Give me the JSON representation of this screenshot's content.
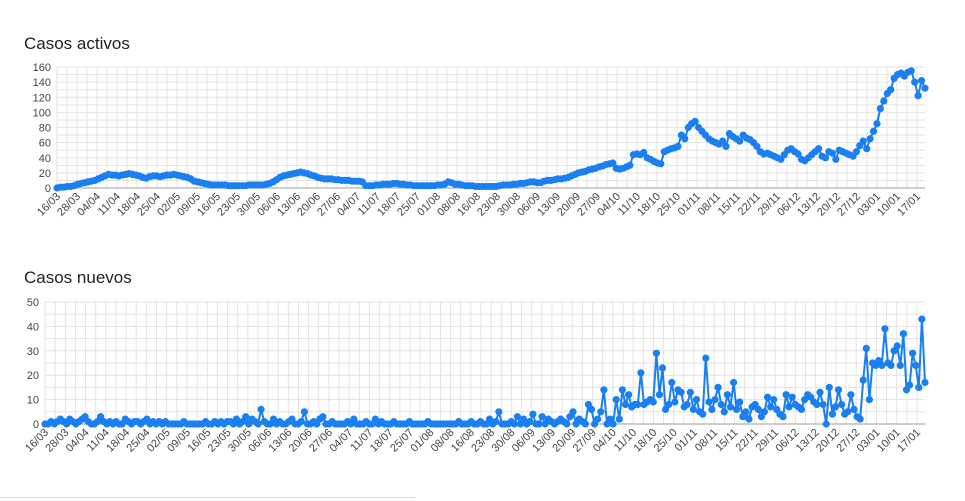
{
  "colors": {
    "series": "#1a7ff0",
    "grid": "#e3e3e3"
  },
  "chart_data": [
    {
      "type": "line",
      "title": "Casos activos",
      "ylim": [
        0,
        160
      ],
      "yticks": [
        0,
        20,
        40,
        60,
        80,
        100,
        120,
        140,
        160
      ],
      "start_date": "16/03",
      "x_tick_labels": [
        "16/03",
        "28/03",
        "04/04",
        "11/04",
        "18/04",
        "25/04",
        "02/05",
        "09/05",
        "16/05",
        "23/05",
        "30/05",
        "06/06",
        "13/06",
        "20/06",
        "27/06",
        "04/07",
        "11/07",
        "18/07",
        "25/07",
        "01/08",
        "08/08",
        "16/08",
        "23/08",
        "30/08",
        "06/09",
        "13/09",
        "20/09",
        "27/09",
        "04/10",
        "11/10",
        "18/10",
        "25/10",
        "01/11",
        "08/11",
        "15/11",
        "22/11",
        "29/11",
        "06/12",
        "13/12",
        "20/12",
        "27/12",
        "03/01",
        "10/01",
        "17/01"
      ],
      "grid": true,
      "legend": "none",
      "values": [
        0,
        1,
        1,
        2,
        2,
        3,
        5,
        6,
        7,
        8,
        9,
        10,
        12,
        14,
        16,
        18,
        17,
        17,
        16,
        17,
        18,
        19,
        18,
        17,
        16,
        14,
        13,
        15,
        16,
        16,
        15,
        16,
        17,
        17,
        18,
        17,
        16,
        15,
        14,
        12,
        9,
        8,
        7,
        6,
        5,
        4,
        4,
        4,
        4,
        4,
        3,
        3,
        3,
        3,
        3,
        3,
        4,
        4,
        4,
        4,
        4,
        5,
        6,
        8,
        11,
        14,
        16,
        17,
        18,
        19,
        20,
        21,
        20,
        19,
        17,
        16,
        14,
        13,
        12,
        12,
        12,
        11,
        11,
        10,
        10,
        10,
        9,
        9,
        9,
        8,
        3,
        3,
        3,
        4,
        4,
        5,
        5,
        5,
        6,
        6,
        5,
        5,
        4,
        4,
        3,
        3,
        3,
        3,
        3,
        3,
        3,
        4,
        4,
        5,
        8,
        7,
        5,
        5,
        4,
        3,
        3,
        3,
        2,
        2,
        2,
        2,
        2,
        2,
        2,
        3,
        4,
        4,
        4,
        5,
        5,
        6,
        6,
        7,
        8,
        8,
        7,
        7,
        9,
        10,
        10,
        11,
        12,
        12,
        13,
        14,
        16,
        18,
        20,
        21,
        22,
        24,
        25,
        26,
        28,
        29,
        31,
        32,
        33,
        26,
        25,
        26,
        28,
        30,
        44,
        45,
        44,
        47,
        40,
        38,
        35,
        33,
        32,
        48,
        50,
        52,
        53,
        55,
        70,
        65,
        80,
        85,
        88,
        80,
        75,
        70,
        65,
        62,
        60,
        58,
        62,
        55,
        72,
        68,
        65,
        62,
        70,
        66,
        64,
        60,
        55,
        48,
        45,
        46,
        44,
        42,
        40,
        38,
        44,
        50,
        52,
        48,
        45,
        38,
        36,
        40,
        44,
        48,
        52,
        42,
        40,
        48,
        46,
        38,
        50,
        48,
        46,
        44,
        42,
        48,
        56,
        62,
        52,
        65,
        75,
        85,
        105,
        115,
        125,
        130,
        145,
        150,
        152,
        148,
        153,
        155,
        140,
        122,
        142,
        132
      ]
    },
    {
      "type": "line",
      "title": "Casos nuevos",
      "ylim": [
        0,
        50
      ],
      "yticks": [
        0,
        10,
        20,
        30,
        40,
        50
      ],
      "start_date": "16/03",
      "x_tick_labels": [
        "16/03",
        "28/03",
        "04/04",
        "11/04",
        "18/04",
        "25/04",
        "02/05",
        "09/05",
        "16/05",
        "23/05",
        "30/05",
        "06/06",
        "13/06",
        "20/06",
        "27/06",
        "04/07",
        "11/07",
        "18/07",
        "25/07",
        "01/08",
        "08/08",
        "16/08",
        "23/08",
        "30/08",
        "06/09",
        "13/09",
        "20/09",
        "27/09",
        "04/10",
        "11/10",
        "18/10",
        "25/10",
        "01/11",
        "08/11",
        "15/11",
        "22/11",
        "29/11",
        "06/12",
        "13/12",
        "20/12",
        "27/12",
        "03/01",
        "10/01",
        "17/01"
      ],
      "grid": true,
      "legend": "none",
      "values": [
        0,
        0,
        1,
        0,
        1,
        2,
        1,
        0,
        2,
        1,
        0,
        1,
        2,
        3,
        1,
        0,
        0,
        1,
        3,
        1,
        0,
        1,
        0,
        1,
        0,
        0,
        2,
        1,
        0,
        1,
        1,
        0,
        1,
        2,
        0,
        1,
        0,
        1,
        0,
        1,
        0,
        0,
        0,
        0,
        0,
        1,
        0,
        0,
        0,
        0,
        0,
        0,
        1,
        0,
        0,
        1,
        0,
        1,
        0,
        1,
        1,
        0,
        2,
        0,
        1,
        3,
        0,
        2,
        1,
        0,
        6,
        1,
        0,
        0,
        2,
        0,
        1,
        0,
        0,
        1,
        2,
        0,
        0,
        1,
        5,
        0,
        0,
        1,
        0,
        2,
        3,
        0,
        0,
        1,
        0,
        0,
        0,
        0,
        1,
        0,
        2,
        0,
        0,
        0,
        1,
        0,
        0,
        2,
        0,
        1,
        0,
        0,
        0,
        1,
        0,
        0,
        0,
        0,
        1,
        0,
        0,
        0,
        0,
        0,
        1,
        0,
        0,
        0,
        0,
        0,
        0,
        0,
        0,
        0,
        1,
        0,
        0,
        0,
        1,
        0,
        0,
        1,
        0,
        0,
        2,
        0,
        1,
        5,
        0,
        0,
        0,
        1,
        0,
        3,
        0,
        2,
        0,
        1,
        4,
        0,
        0,
        3,
        0,
        2,
        1,
        0,
        1,
        2,
        1,
        0,
        3,
        5,
        0,
        2,
        1,
        0,
        8,
        6,
        0,
        2,
        5,
        14,
        0,
        2,
        0,
        10,
        2,
        14,
        8,
        12,
        7,
        8,
        8,
        21,
        8,
        9,
        10,
        9,
        29,
        12,
        23,
        6,
        8,
        17,
        9,
        14,
        13,
        7,
        8,
        13,
        6,
        10,
        5,
        4,
        27,
        9,
        6,
        10,
        15,
        8,
        5,
        12,
        7,
        17,
        6,
        9,
        3,
        5,
        2,
        7,
        8,
        6,
        3,
        5,
        11,
        7,
        10,
        6,
        4,
        3,
        12,
        7,
        11,
        8,
        7,
        6,
        10,
        12,
        11,
        9,
        8,
        13,
        8,
        0,
        15,
        4,
        7,
        14,
        8,
        4,
        5,
        12,
        6,
        3,
        2,
        18,
        31,
        10,
        25,
        24,
        26,
        24,
        39,
        25,
        24,
        30,
        32,
        24,
        37,
        14,
        16,
        29,
        24,
        15,
        43,
        17
      ]
    }
  ]
}
